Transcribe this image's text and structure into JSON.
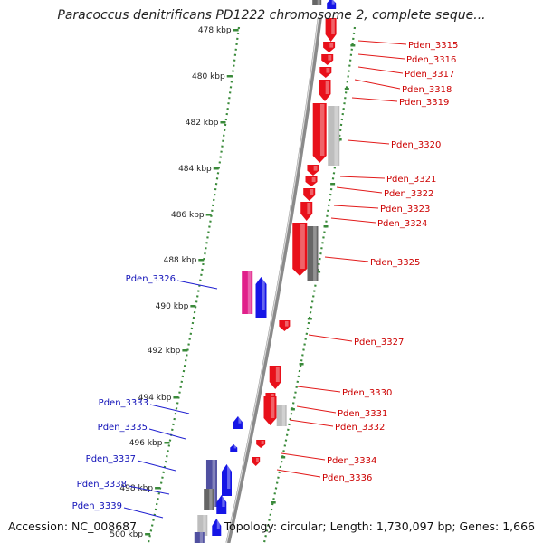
{
  "title": "Paracoccus denitrificans PD1222 chromosome 2, complete seque...",
  "footer": {
    "accession": "Accession: NC_008687",
    "summary": "Topology: circular; Length: 1,730,097 bp; Genes: 1,666"
  },
  "colors": {
    "forward": "#e8101a",
    "reverse": "#1515e6",
    "forward_label": "#cc0000",
    "reverse_label": "#1010b8",
    "pink": "#e0208a",
    "gray": "#666666",
    "lightgray": "#bdbdbd",
    "ruler": "#3a8a3a",
    "backbone": "#8a8a8a"
  },
  "kbp_ticks": [
    "478 kbp",
    "480 kbp",
    "482 kbp",
    "484 kbp",
    "486 kbp",
    "488 kbp",
    "490 kbp",
    "492 kbp",
    "494 kbp",
    "496 kbp",
    "498 kbp",
    "500 kbp"
  ],
  "genes_right": [
    "Pden_3315",
    "Pden_3316",
    "Pden_3317",
    "Pden_3318",
    "Pden_3319",
    "Pden_3320",
    "Pden_3321",
    "Pden_3322",
    "Pden_3323",
    "Pden_3324",
    "Pden_3325",
    "Pden_3327",
    "Pden_3330",
    "Pden_3331",
    "Pden_3332",
    "Pden_3334",
    "Pden_3336"
  ],
  "genes_left": [
    "Pden_3326",
    "Pden_3333",
    "Pden_3335",
    "Pden_3337",
    "Pden_3338",
    "Pden_3339"
  ]
}
